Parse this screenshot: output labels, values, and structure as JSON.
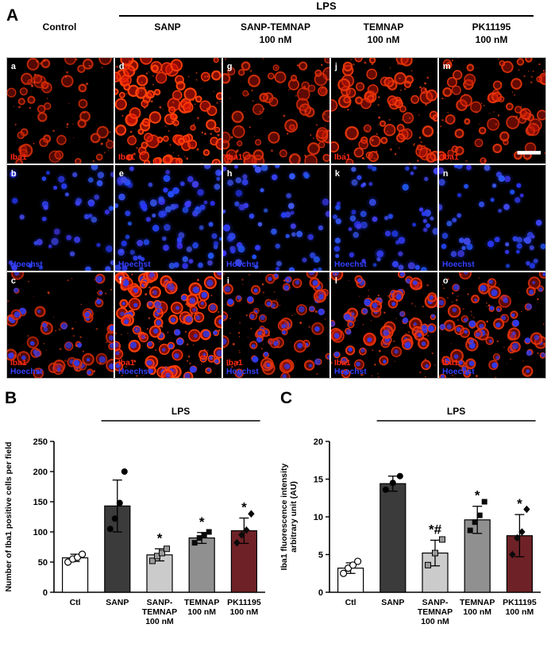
{
  "panelA": {
    "label": "A",
    "treatment_header": "LPS",
    "scale_bar_panel": "m",
    "columns": [
      {
        "title_lines": [
          "Control"
        ],
        "letters": [
          "a",
          "b",
          "c"
        ],
        "under_lps": false
      },
      {
        "title_lines": [
          "SANP"
        ],
        "letters": [
          "d",
          "e",
          "f"
        ],
        "under_lps": true
      },
      {
        "title_lines": [
          "SANP-TEMNAP",
          "100 nM"
        ],
        "letters": [
          "g",
          "h",
          "i"
        ],
        "under_lps": true
      },
      {
        "title_lines": [
          "TEMNAP",
          "100 nM"
        ],
        "letters": [
          "j",
          "k",
          "l"
        ],
        "under_lps": true
      },
      {
        "title_lines": [
          "PK11195",
          "100 nM"
        ],
        "letters": [
          "m",
          "n",
          "o"
        ],
        "under_lps": true
      }
    ],
    "rows": [
      {
        "stain": "iba1",
        "labels": [
          {
            "text": "Iba1",
            "color": "#ff2613"
          }
        ]
      },
      {
        "stain": "hoechst",
        "labels": [
          {
            "text": "Hoechst",
            "color": "#3340ff"
          }
        ]
      },
      {
        "stain": "merge",
        "labels": [
          {
            "text": "Iba1",
            "color": "#ff2613"
          },
          {
            "text": "Hoechst",
            "color": "#3340ff"
          }
        ]
      }
    ]
  },
  "chart_data": [
    {
      "panel_label": "B",
      "type": "bar",
      "title": "",
      "ylabel_lines": [
        "Number of Iba1 positive cells per field"
      ],
      "ylim": [
        0,
        250
      ],
      "yticks": [
        0,
        50,
        100,
        150,
        200,
        250
      ],
      "categories": [
        [
          "Ctl"
        ],
        [
          "SANP"
        ],
        [
          "SANP-",
          "TEMNAP",
          "100 nM"
        ],
        [
          "TEMNAP",
          "100 nM"
        ],
        [
          "PK11195",
          "100 nM"
        ]
      ],
      "values": [
        57,
        143,
        62,
        90,
        102
      ],
      "errors": [
        6,
        43,
        10,
        9,
        21
      ],
      "points": [
        [
          50,
          55,
          58,
          63
        ],
        [
          105,
          122,
          148,
          200
        ],
        [
          52,
          60,
          65,
          72
        ],
        [
          82,
          90,
          95,
          100
        ],
        [
          82,
          95,
          103,
          130
        ]
      ],
      "markers": [
        "circle-open",
        "circle-filled",
        "square-gray",
        "square-filled",
        "diamond-filled"
      ],
      "bar_colors": [
        "#ffffff",
        "#3b3b3b",
        "#cbcbcb",
        "#909090",
        "#6e2227"
      ],
      "annotations": [
        "",
        "",
        "*",
        "*",
        "*"
      ],
      "group_label": "LPS",
      "group_span": [
        1,
        4
      ],
      "grid": false,
      "legend": "none"
    },
    {
      "panel_label": "C",
      "type": "bar",
      "title": "",
      "ylabel_lines": [
        "Iba1 fluorescence intensity",
        "arbitrary unit (AU)"
      ],
      "ylim": [
        0,
        20
      ],
      "yticks": [
        0,
        5,
        10,
        15,
        20
      ],
      "categories": [
        [
          "Ctl"
        ],
        [
          "SANP"
        ],
        [
          "SANP-",
          "TEMNAP",
          "100 nM"
        ],
        [
          "TEMNAP",
          "100 nM"
        ],
        [
          "PK11195",
          "100 nM"
        ]
      ],
      "values": [
        3.2,
        14.4,
        5.2,
        9.6,
        7.5
      ],
      "errors": [
        0.7,
        1.0,
        1.7,
        1.8,
        2.8
      ],
      "points": [
        [
          2.5,
          3.2,
          3.6,
          4.1
        ],
        [
          13.6,
          14.5,
          15.4
        ],
        [
          3.6,
          5.2,
          7.0
        ],
        [
          8.2,
          9.3,
          10.2,
          12.0
        ],
        [
          5.0,
          7.2,
          8.0,
          11.0
        ]
      ],
      "markers": [
        "circle-open",
        "circle-filled",
        "square-gray",
        "square-filled",
        "diamond-filled"
      ],
      "bar_colors": [
        "#ffffff",
        "#3b3b3b",
        "#cbcbcb",
        "#909090",
        "#6e2227"
      ],
      "annotations": [
        "",
        "",
        "*#",
        "*",
        "*"
      ],
      "group_label": "LPS",
      "group_span": [
        1,
        4
      ],
      "grid": false,
      "legend": "none"
    }
  ],
  "colors": {
    "iba1_signal": "#e03010",
    "hoechst_signal": "#2335f0",
    "axis": "#000000"
  }
}
